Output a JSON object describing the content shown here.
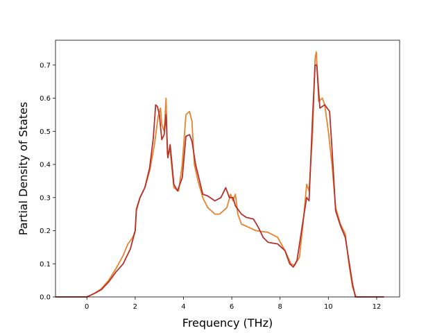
{
  "chart_data": {
    "type": "line",
    "title": "",
    "xlabel": "Frequency (THz)",
    "ylabel": "Partial Density of States",
    "xlim": [
      -1.3,
      12.95
    ],
    "ylim": [
      0.0,
      0.775
    ],
    "xticks": [
      0,
      2,
      4,
      6,
      8,
      10,
      12
    ],
    "yticks": [
      0.0,
      0.1,
      0.2,
      0.3,
      0.4,
      0.5,
      0.6,
      0.7
    ],
    "xtick_labels": [
      "0",
      "2",
      "4",
      "6",
      "8",
      "10",
      "12"
    ],
    "ytick_labels": [
      "0.0",
      "0.1",
      "0.2",
      "0.3",
      "0.4",
      "0.5",
      "0.6",
      "0.7"
    ],
    "grid": false,
    "legend": "none",
    "series": [
      {
        "color": "#e8822c",
        "points": [
          [
            -1.3,
            0.0
          ],
          [
            -0.5,
            0.0
          ],
          [
            0.0,
            0.0
          ],
          [
            0.3,
            0.01
          ],
          [
            0.6,
            0.025
          ],
          [
            0.9,
            0.05
          ],
          [
            1.2,
            0.085
          ],
          [
            1.5,
            0.125
          ],
          [
            1.7,
            0.16
          ],
          [
            1.9,
            0.18
          ],
          [
            2.0,
            0.2
          ],
          [
            2.05,
            0.26
          ],
          [
            2.2,
            0.3
          ],
          [
            2.4,
            0.33
          ],
          [
            2.6,
            0.38
          ],
          [
            2.8,
            0.46
          ],
          [
            2.95,
            0.545
          ],
          [
            3.05,
            0.57
          ],
          [
            3.1,
            0.52
          ],
          [
            3.2,
            0.5
          ],
          [
            3.28,
            0.6
          ],
          [
            3.33,
            0.43
          ],
          [
            3.45,
            0.44
          ],
          [
            3.6,
            0.33
          ],
          [
            3.8,
            0.32
          ],
          [
            3.95,
            0.4
          ],
          [
            4.1,
            0.55
          ],
          [
            4.25,
            0.56
          ],
          [
            4.35,
            0.53
          ],
          [
            4.45,
            0.4
          ],
          [
            4.6,
            0.35
          ],
          [
            4.8,
            0.3
          ],
          [
            5.0,
            0.27
          ],
          [
            5.3,
            0.25
          ],
          [
            5.5,
            0.25
          ],
          [
            5.8,
            0.27
          ],
          [
            5.95,
            0.31
          ],
          [
            6.05,
            0.29
          ],
          [
            6.15,
            0.31
          ],
          [
            6.25,
            0.25
          ],
          [
            6.4,
            0.22
          ],
          [
            6.7,
            0.21
          ],
          [
            7.0,
            0.2
          ],
          [
            7.5,
            0.195
          ],
          [
            7.9,
            0.18
          ],
          [
            8.2,
            0.14
          ],
          [
            8.45,
            0.1
          ],
          [
            8.6,
            0.095
          ],
          [
            8.8,
            0.12
          ],
          [
            8.95,
            0.22
          ],
          [
            9.05,
            0.3
          ],
          [
            9.1,
            0.34
          ],
          [
            9.2,
            0.32
          ],
          [
            9.35,
            0.5
          ],
          [
            9.45,
            0.72
          ],
          [
            9.5,
            0.74
          ],
          [
            9.6,
            0.59
          ],
          [
            9.75,
            0.6
          ],
          [
            9.85,
            0.58
          ],
          [
            10.0,
            0.5
          ],
          [
            10.15,
            0.4
          ],
          [
            10.3,
            0.27
          ],
          [
            10.5,
            0.22
          ],
          [
            10.7,
            0.19
          ],
          [
            10.85,
            0.1
          ],
          [
            11.0,
            0.03
          ],
          [
            11.15,
            0.0
          ],
          [
            11.5,
            0.0
          ],
          [
            12.3,
            0.0
          ]
        ]
      },
      {
        "color": "#b5302a",
        "points": [
          [
            -1.3,
            0.0
          ],
          [
            -0.5,
            0.0
          ],
          [
            0.0,
            0.0
          ],
          [
            0.3,
            0.01
          ],
          [
            0.6,
            0.022
          ],
          [
            0.9,
            0.045
          ],
          [
            1.2,
            0.075
          ],
          [
            1.5,
            0.1
          ],
          [
            1.8,
            0.145
          ],
          [
            2.0,
            0.2
          ],
          [
            2.05,
            0.265
          ],
          [
            2.2,
            0.3
          ],
          [
            2.4,
            0.33
          ],
          [
            2.6,
            0.39
          ],
          [
            2.75,
            0.48
          ],
          [
            2.85,
            0.58
          ],
          [
            2.92,
            0.575
          ],
          [
            3.0,
            0.55
          ],
          [
            3.1,
            0.475
          ],
          [
            3.2,
            0.49
          ],
          [
            3.28,
            0.55
          ],
          [
            3.35,
            0.42
          ],
          [
            3.45,
            0.46
          ],
          [
            3.6,
            0.34
          ],
          [
            3.75,
            0.32
          ],
          [
            3.95,
            0.36
          ],
          [
            4.1,
            0.485
          ],
          [
            4.25,
            0.49
          ],
          [
            4.35,
            0.47
          ],
          [
            4.5,
            0.4
          ],
          [
            4.6,
            0.37
          ],
          [
            4.8,
            0.31
          ],
          [
            5.0,
            0.305
          ],
          [
            5.3,
            0.29
          ],
          [
            5.55,
            0.3
          ],
          [
            5.75,
            0.33
          ],
          [
            5.9,
            0.3
          ],
          [
            6.05,
            0.3
          ],
          [
            6.15,
            0.275
          ],
          [
            6.4,
            0.25
          ],
          [
            6.6,
            0.24
          ],
          [
            6.9,
            0.235
          ],
          [
            7.1,
            0.21
          ],
          [
            7.3,
            0.18
          ],
          [
            7.5,
            0.165
          ],
          [
            7.9,
            0.16
          ],
          [
            8.2,
            0.14
          ],
          [
            8.4,
            0.1
          ],
          [
            8.55,
            0.09
          ],
          [
            8.7,
            0.11
          ],
          [
            8.95,
            0.23
          ],
          [
            9.1,
            0.3
          ],
          [
            9.2,
            0.29
          ],
          [
            9.35,
            0.55
          ],
          [
            9.45,
            0.7
          ],
          [
            9.52,
            0.7
          ],
          [
            9.65,
            0.57
          ],
          [
            9.85,
            0.58
          ],
          [
            10.05,
            0.56
          ],
          [
            10.15,
            0.45
          ],
          [
            10.3,
            0.26
          ],
          [
            10.5,
            0.215
          ],
          [
            10.7,
            0.18
          ],
          [
            10.85,
            0.11
          ],
          [
            11.0,
            0.04
          ],
          [
            11.12,
            0.0
          ],
          [
            11.5,
            0.0
          ],
          [
            12.3,
            0.0
          ]
        ]
      }
    ]
  }
}
